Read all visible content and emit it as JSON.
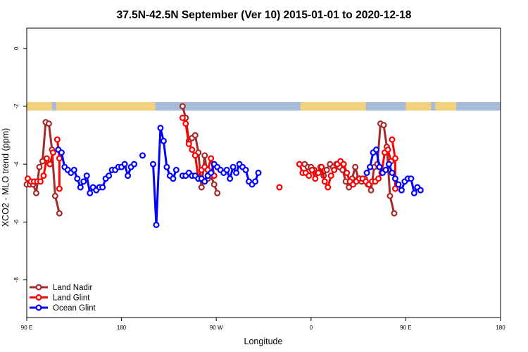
{
  "chart_data": {
    "type": "line",
    "title": "37.5N-42.5N September (Ver 10)   2015-01-01 to 2020-12-18",
    "xlabel": "Longitude",
    "ylabel": "XCO2 - MLO trend (ppm)",
    "xlim": [
      90,
      540
    ],
    "ylim": [
      -9.3,
      0.7
    ],
    "x_ticks": [
      {
        "value": 90,
        "label": "90 E"
      },
      {
        "value": 180,
        "label": "180"
      },
      {
        "value": 270,
        "label": "90 W"
      },
      {
        "value": 360,
        "label": "0"
      },
      {
        "value": 450,
        "label": "90 E"
      },
      {
        "value": 540,
        "label": "180"
      }
    ],
    "y_ticks": [
      {
        "value": 0,
        "label": "0"
      },
      {
        "value": -2,
        "label": "-2"
      },
      {
        "value": -4,
        "label": "-4"
      },
      {
        "value": -6,
        "label": "-6"
      },
      {
        "value": -8,
        "label": "-8"
      }
    ],
    "land_band": {
      "y_center": -2.0,
      "land_ranges": [
        [
          90,
          114
        ],
        [
          118,
          212
        ],
        [
          350,
          412
        ],
        [
          450,
          474
        ],
        [
          478,
          498
        ]
      ],
      "land_color": "#f2d27c",
      "ocean_color": "#a7bcd9"
    },
    "legend_position": "bottom-left",
    "series": [
      {
        "name": "Land Nadir",
        "color": "#a52a2a",
        "segments": [
          [
            [
              90,
              -4.7
            ],
            [
              93,
              -4.7
            ],
            [
              96,
              -4.7
            ],
            [
              99,
              -5.0
            ],
            [
              102,
              -4.1
            ],
            [
              105,
              -3.9
            ],
            [
              108,
              -2.55
            ],
            [
              111,
              -2.6
            ],
            [
              114,
              -3.5
            ],
            [
              117,
              -5.1
            ],
            [
              121,
              -5.7
            ]
          ],
          [
            [
              238,
              -2.0
            ],
            [
              241,
              -2.4
            ],
            [
              244,
              -3.2
            ],
            [
              247,
              -3.1
            ],
            [
              250,
              -3.0
            ],
            [
              253,
              -3.6
            ],
            [
              256,
              -4.8
            ],
            [
              259,
              -3.7
            ],
            [
              262,
              -4.5
            ],
            [
              265,
              -4.4
            ],
            [
              268,
              -4.7
            ],
            [
              271,
              -5.0
            ]
          ],
          [
            [
              354,
              -4.0
            ],
            [
              357,
              -4.1
            ],
            [
              360,
              -4.1
            ],
            [
              363,
              -4.2
            ],
            [
              366,
              -4.3
            ],
            [
              369,
              -4.1
            ],
            [
              372,
              -4.4
            ],
            [
              375,
              -4.2
            ],
            [
              378,
              -4.0
            ],
            [
              381,
              -4.1
            ],
            [
              384,
              -4.0
            ],
            [
              387,
              -4.1
            ],
            [
              390,
              -4.2
            ],
            [
              393,
              -4.6
            ],
            [
              396,
              -4.8
            ],
            [
              399,
              -4.5
            ],
            [
              402,
              -4.1
            ],
            [
              405,
              -4.5
            ],
            [
              408,
              -4.6
            ],
            [
              411,
              -4.5
            ],
            [
              414,
              -4.7
            ],
            [
              417,
              -4.9
            ],
            [
              420,
              -4.1
            ],
            [
              423,
              -4.0
            ],
            [
              426,
              -2.6
            ],
            [
              429,
              -2.65
            ],
            [
              432,
              -3.4
            ],
            [
              435,
              -5.1
            ],
            [
              439,
              -5.7
            ]
          ]
        ]
      },
      {
        "name": "Land Glint",
        "color": "#ff0000",
        "segments": [
          [
            [
              91,
              -4.5
            ],
            [
              94,
              -4.6
            ],
            [
              97,
              -4.6
            ],
            [
              100,
              -4.6
            ],
            [
              103,
              -4.6
            ],
            [
              106,
              -4.4
            ],
            [
              109,
              -3.8
            ],
            [
              112,
              -4.0
            ],
            [
              115,
              -3.6
            ]
          ],
          [
            [
              119,
              -3.15
            ],
            [
              121,
              -3.8
            ],
            [
              121,
              -4.85
            ]
          ],
          [
            [
              238,
              -2.4
            ],
            [
              241,
              -2.6
            ],
            [
              244,
              -3.3
            ],
            [
              247,
              -3.5
            ],
            [
              250,
              -3.7
            ],
            [
              253,
              -4.5
            ],
            [
              256,
              -4.2
            ],
            [
              259,
              -4.1
            ],
            [
              262,
              -4.2
            ],
            [
              265,
              -3.8
            ],
            [
              268,
              -4.4
            ]
          ],
          [
            [
              330,
              -4.8
            ]
          ],
          [
            [
              349,
              -4.0
            ],
            [
              352,
              -4.3
            ],
            [
              355,
              -4.3
            ],
            [
              358,
              -4.4
            ],
            [
              361,
              -4.2
            ],
            [
              364,
              -4.5
            ],
            [
              367,
              -4.3
            ],
            [
              370,
              -4.1
            ],
            [
              373,
              -4.6
            ],
            [
              376,
              -4.8
            ],
            [
              379,
              -4.4
            ],
            [
              382,
              -4.2
            ],
            [
              385,
              -4.0
            ],
            [
              388,
              -3.9
            ],
            [
              391,
              -4.0
            ],
            [
              394,
              -4.3
            ],
            [
              397,
              -4.6
            ],
            [
              400,
              -4.7
            ],
            [
              403,
              -4.6
            ],
            [
              406,
              -4.5
            ],
            [
              409,
              -4.5
            ],
            [
              412,
              -4.6
            ],
            [
              415,
              -4.7
            ],
            [
              418,
              -4.6
            ],
            [
              421,
              -4.6
            ],
            [
              424,
              -4.5
            ],
            [
              427,
              -4.3
            ],
            [
              430,
              -3.6
            ],
            [
              433,
              -3.5
            ],
            [
              436,
              -3.9
            ]
          ],
          [
            [
              437,
              -3.15
            ],
            [
              440,
              -3.8
            ],
            [
              440,
              -4.85
            ]
          ]
        ]
      },
      {
        "name": "Ocean Glint",
        "color": "#0000ff",
        "segments": [
          [
            [
              120,
              -3.5
            ],
            [
              123,
              -3.6
            ],
            [
              126,
              -4.1
            ],
            [
              129,
              -4.2
            ],
            [
              132,
              -4.3
            ],
            [
              135,
              -4.2
            ],
            [
              138,
              -4.5
            ],
            [
              141,
              -4.8
            ],
            [
              144,
              -4.6
            ],
            [
              147,
              -4.4
            ],
            [
              150,
              -5.0
            ],
            [
              153,
              -4.8
            ],
            [
              156,
              -4.9
            ],
            [
              159,
              -4.8
            ],
            [
              162,
              -4.8
            ],
            [
              165,
              -4.5
            ],
            [
              168,
              -4.4
            ],
            [
              171,
              -4.2
            ],
            [
              174,
              -4.2
            ],
            [
              177,
              -4.1
            ],
            [
              180,
              -4.1
            ],
            [
              183,
              -4.0
            ],
            [
              186,
              -4.4
            ],
            [
              189,
              -4.1
            ],
            [
              192,
              -4.0
            ]
          ],
          [
            [
              200,
              -3.7
            ]
          ],
          [
            [
              210,
              -4.0
            ],
            [
              213,
              -6.1
            ],
            [
              217,
              -2.75
            ],
            [
              220,
              -3.2
            ],
            [
              223,
              -4.1
            ],
            [
              226,
              -4.4
            ],
            [
              229,
              -4.5
            ],
            [
              232,
              -4.2
            ]
          ],
          [
            [
              238,
              -4.4
            ],
            [
              241,
              -4.4
            ],
            [
              244,
              -4.3
            ],
            [
              247,
              -4.4
            ],
            [
              250,
              -4.4
            ],
            [
              253,
              -4.5
            ],
            [
              256,
              -4.5
            ],
            [
              259,
              -4.6
            ],
            [
              262,
              -4.4
            ],
            [
              265,
              -4.3
            ],
            [
              268,
              -4.0
            ],
            [
              271,
              -4.1
            ],
            [
              274,
              -4.2
            ],
            [
              277,
              -4.3
            ],
            [
              280,
              -4.2
            ],
            [
              283,
              -4.5
            ],
            [
              286,
              -4.1
            ],
            [
              289,
              -4.3
            ],
            [
              292,
              -4.0
            ],
            [
              295,
              -4.1
            ],
            [
              298,
              -4.2
            ],
            [
              301,
              -4.6
            ],
            [
              304,
              -4.7
            ],
            [
              307,
              -4.6
            ],
            [
              310,
              -4.3
            ]
          ],
          [
            [
              413,
              -4.3
            ],
            [
              416,
              -4.1
            ],
            [
              419,
              -3.6
            ],
            [
              422,
              -3.5
            ],
            [
              425,
              -4.1
            ],
            [
              428,
              -4.3
            ],
            [
              431,
              -4.2
            ],
            [
              434,
              -4.0
            ],
            [
              437,
              -4.3
            ],
            [
              440,
              -4.5
            ],
            [
              443,
              -4.7
            ],
            [
              446,
              -4.9
            ],
            [
              449,
              -4.6
            ],
            [
              452,
              -4.5
            ],
            [
              455,
              -4.5
            ],
            [
              458,
              -5.0
            ],
            [
              461,
              -4.8
            ],
            [
              464,
              -4.9
            ]
          ]
        ]
      }
    ]
  }
}
